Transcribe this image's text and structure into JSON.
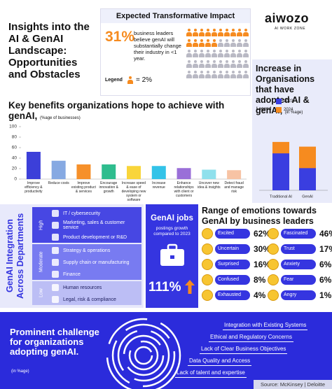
{
  "header": {
    "title": "Insights into the AI & GenAI Landscape: Opportunities and Obstacles",
    "logo": "aiwozo",
    "logo_tagline": "AI WORK ZONE"
  },
  "impact": {
    "title": "Expected Transformative Impact",
    "figure": "31%",
    "text": "business leaders believe genAI will substantially change their industry in <1 year.",
    "legend_label": "Legend",
    "legend_value": "= 2%"
  },
  "chart_data": [
    {
      "type": "bar",
      "title": "Key benefits organizations hope to achieve with genAI,",
      "subtitle": "(%age of businesses)",
      "categories": [
        "Improve efficiency & productivity",
        "Reduce costs",
        "Improve existing product & services",
        "Encourage innovation & growth",
        "Increase speed & ease of developing new system or software",
        "Increase revenue",
        "Enhance relationships with client or customers",
        "Uncover new idea & insights",
        "Detect fraud and manage risk"
      ],
      "values": [
        52,
        35,
        28,
        28,
        25,
        25,
        21,
        18,
        17
      ],
      "colors": [
        "#3c3fd9",
        "#86a9e2",
        "#f6902a",
        "#2fbd8e",
        "#f9d53a",
        "#33c3e8",
        "#9a6fd8",
        "#8fe0ec",
        "#f7c3a4"
      ],
      "ylim": [
        0,
        100
      ],
      "yticks": [
        0,
        20,
        40,
        60,
        80,
        100
      ],
      "grid": false
    },
    {
      "type": "bar",
      "barmode": "overlay",
      "title": "Increase in Organisations that have adopted AI & genAI,",
      "subtitle": "(in %age)",
      "legend_title": "Legend",
      "categories": [
        "Traditional AI",
        "GenAI"
      ],
      "series": [
        {
          "name": "2023",
          "color": "#3a3ee0",
          "values": [
            55,
            33
          ]
        },
        {
          "name": "2024",
          "color": "#f68b1f",
          "values": [
            72,
            65
          ]
        }
      ],
      "ylim": [
        0,
        100
      ]
    }
  ],
  "departments": {
    "title": "GenAI Integration Across Departments",
    "groups": [
      {
        "level": "High",
        "items": [
          "IT / cybersecurity",
          "Marketing, sales & customer service",
          "Product development or R&D"
        ]
      },
      {
        "level": "Moderate",
        "items": [
          "Strategy & operations",
          "Supply chain or manufacturing",
          "Finance"
        ]
      },
      {
        "level": "Low",
        "items": [
          "Human resources",
          "Legal, risk & compliance"
        ]
      }
    ]
  },
  "jobs": {
    "title": "GenAI jobs",
    "subtitle": "postings growth compared to 2023",
    "figure": "111%"
  },
  "emotions": {
    "title": "Range of emotions towards GenAI by business leaders",
    "items": [
      {
        "label": "Excited",
        "value": "62%"
      },
      {
        "label": "Fascinated",
        "value": "46%"
      },
      {
        "label": "Uncertain",
        "value": "30%"
      },
      {
        "label": "Trust",
        "value": "17%"
      },
      {
        "label": "Surprised",
        "value": "16%"
      },
      {
        "label": "Anxiety",
        "value": "6%"
      },
      {
        "label": "Confused",
        "value": "8%"
      },
      {
        "label": "Fear",
        "value": "6%"
      },
      {
        "label": "Exhausted",
        "value": "4%"
      },
      {
        "label": "Angry",
        "value": "1%"
      }
    ]
  },
  "challenges": {
    "title": "Prominent challenge for organizations adopting genAI.",
    "subtitle": "(in %age)",
    "items": [
      "Integration with Existing Systems",
      "Ethical and Regulatory Concerns",
      "Lack of Clear Business Objectives",
      "Data Quality and Access",
      "Lack of talent and expertise"
    ]
  },
  "source": "Source: McKinsey | Deloitte"
}
